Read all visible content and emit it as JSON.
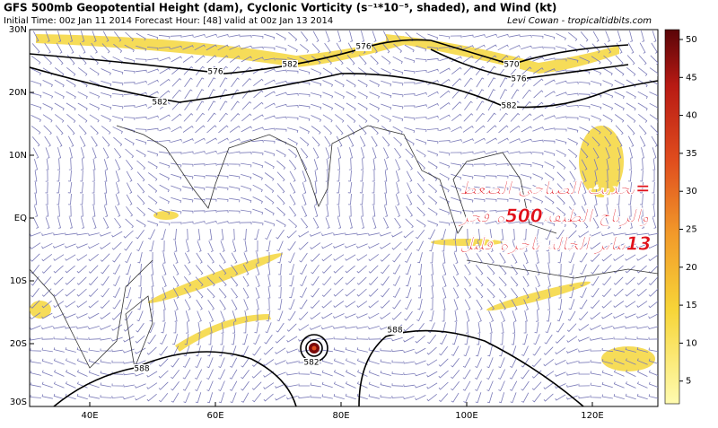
{
  "header": {
    "title": "GFS 500mb Geopotential Height (dam), Cyclonic Vorticity (s⁻¹*10⁻⁵, shaded), and Wind (kt)",
    "subtitle": "Initial Time: 00z Jan 11 2014 Forecast Hour: [48] valid at 00z Jan 13 2014",
    "credit": "Levi Cowan - tropicaltidbits.com"
  },
  "map": {
    "lat_labels": [
      "30N",
      "20N",
      "10N",
      "EQ",
      "10S",
      "20S",
      "30S"
    ],
    "lon_labels": [
      "40E",
      "60E",
      "80E",
      "100E",
      "120E"
    ],
    "contour_labels": [
      "576",
      "576",
      "582",
      "582",
      "570",
      "576",
      "582",
      "588",
      "582",
      "588"
    ],
    "annotation": [
      "=تحديث الصباحي الضغط",
      "والرياح الطبقة500ه فجر",
      "13يناير الحالة تاخرة قليل"
    ]
  },
  "colorbar": {
    "ticks": [
      "50",
      "45",
      "40",
      "35",
      "30",
      "25",
      "20",
      "15",
      "10",
      "5"
    ]
  }
}
